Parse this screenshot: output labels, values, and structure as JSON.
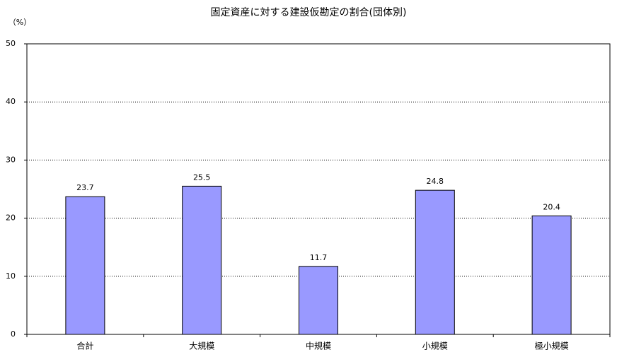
{
  "chart_data": {
    "type": "bar",
    "title": "固定資産に対する建設仮勘定の割合(団体別)",
    "y_axis_label": "（%）",
    "categories": [
      "合計",
      "大規模",
      "中規模",
      "小規模",
      "極小規模"
    ],
    "values": [
      23.7,
      25.5,
      11.7,
      24.8,
      20.4
    ],
    "color": "#9999ff",
    "ylim": [
      0,
      50
    ],
    "yticks": [
      0,
      10,
      20,
      30,
      40,
      50
    ],
    "grid": true
  }
}
